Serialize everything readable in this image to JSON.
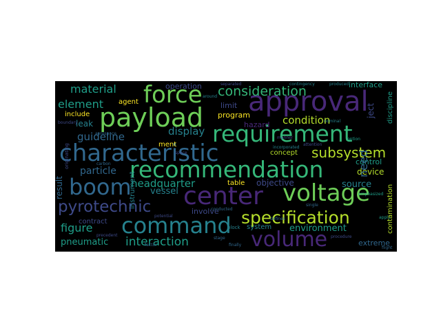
{
  "palette": {
    "background": "#000000",
    "figure_background": "#ffffff",
    "purple": "#482878",
    "indigo": "#3e4a89",
    "blue": "#31688e",
    "teal": "#26828e",
    "green": "#1f9e89",
    "lightgreen": "#35b779",
    "lime": "#6ece58",
    "yellowgreen": "#b5de2b",
    "yellow": "#fde725"
  },
  "words": {
    "approval": "approval",
    "force": "force",
    "payload": "payload",
    "requirement": "requirement",
    "characteristic": "characteristic",
    "recommendation": "recommendation",
    "center": "center",
    "voltage": "voltage",
    "boom": "boom",
    "command": "command",
    "volume": "volume",
    "specification": "specification",
    "pyrotechnic": "pyrotechnic",
    "consideration": "consideration",
    "subsystem": "subsystem",
    "material": "material",
    "element": "element",
    "condition": "condition",
    "interaction": "interaction",
    "headquarter": "headquarter",
    "display": "display",
    "guideline": "guideline",
    "particle": "particle",
    "figure": "figure",
    "pneumatic": "pneumatic",
    "environment": "environment",
    "operation": "operation",
    "interface": "interface",
    "program": "program",
    "limit": "limit",
    "hazard": "hazard",
    "agent": "agent",
    "include": "include",
    "leak": "leak",
    "ment": "ment",
    "concept": "concept",
    "control": "control",
    "device": "device",
    "source": "source",
    "objective": "objective",
    "table": "table",
    "vessel": "vessel",
    "contract": "contract",
    "involve": "involve",
    "system": "system",
    "extreme": "extreme",
    "need": "need",
    "ject": "ject",
    "result": "result",
    "contamination": "contamination",
    "instrument": "instrument",
    "discipline": "discipline",
    "block": "block",
    "separated": "separated",
    "contingency": "contingency",
    "incorporated": "incorporated",
    "produced": "produced",
    "boundary": "boundary",
    "aerospace": "aerospace",
    "emphasized": "emphasized",
    "finally": "finally",
    "single": "single",
    "defines": "defines",
    "procedure": "procedure",
    "potential": "potential",
    "carbon": "carbon",
    "conducted": "conducted",
    "precedent": "precedent",
    "attention": "attention",
    "stage": "stage",
    "manner": "manner",
    "nominal": "nominal",
    "option": "option",
    "space": "space",
    "apply": "apply",
    "around": "around",
    "factor": "factor",
    "flight": "flight",
    "originating": "originating"
  }
}
